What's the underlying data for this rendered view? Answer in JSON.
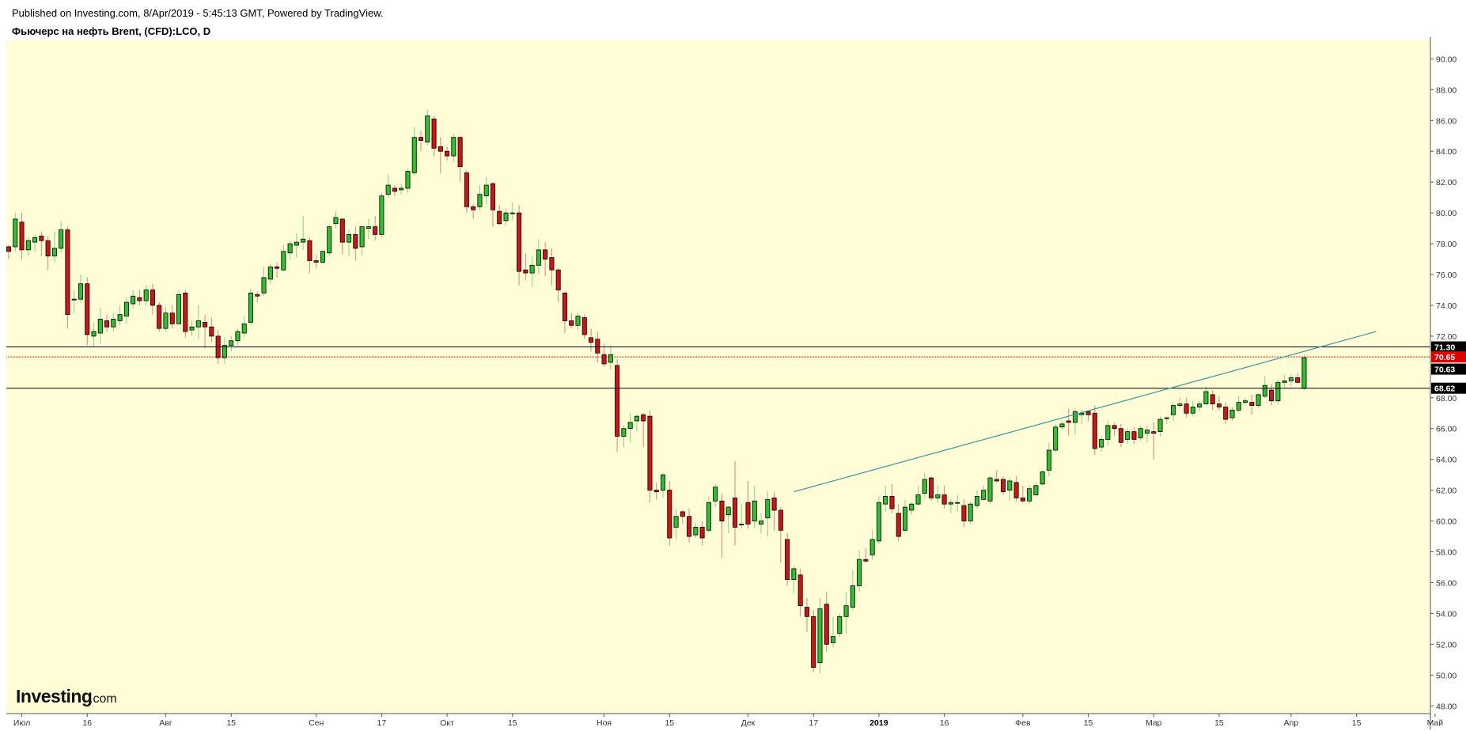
{
  "header": {
    "published": "Published on Investing.com, 8/Apr/2019 - 5:45:13 GMT, Powered by TradingView.",
    "title": "Фьючерс на нефть Brent, (CFD):LCO, D"
  },
  "logo": {
    "main": "Investing",
    "suffix": ".com"
  },
  "colors": {
    "background": "#fefdd5",
    "up": "#2ec02e",
    "down": "#d01414",
    "trendline": "#3a9a9a",
    "level_line": "#000000",
    "current_line": "#cc0000"
  },
  "chart_data": {
    "type": "candlestick",
    "symbol": "LCO",
    "interval": "D",
    "ylim": [
      47.5,
      91.2
    ],
    "y_ticks": [
      "48.00",
      "50.00",
      "52.00",
      "54.00",
      "56.00",
      "58.00",
      "60.00",
      "62.00",
      "64.00",
      "66.00",
      "68.00",
      "70.00",
      "72.00",
      "74.00",
      "76.00",
      "78.00",
      "80.00",
      "82.00",
      "84.00",
      "86.00",
      "88.00",
      "90.00"
    ],
    "x_ticks": [
      {
        "label": "Июл",
        "day": 2,
        "bold": false
      },
      {
        "label": "16",
        "day": 12,
        "bold": false
      },
      {
        "label": "Авг",
        "day": 24,
        "bold": false
      },
      {
        "label": "15",
        "day": 34,
        "bold": false
      },
      {
        "label": "Сен",
        "day": 47,
        "bold": false
      },
      {
        "label": "17",
        "day": 57,
        "bold": false
      },
      {
        "label": "Окт",
        "day": 67,
        "bold": false
      },
      {
        "label": "15",
        "day": 77,
        "bold": false
      },
      {
        "label": "Ноя",
        "day": 91,
        "bold": false
      },
      {
        "label": "15",
        "day": 101,
        "bold": false
      },
      {
        "label": "Дек",
        "day": 113,
        "bold": false
      },
      {
        "label": "17",
        "day": 123,
        "bold": false
      },
      {
        "label": "2019",
        "day": 133,
        "bold": true
      },
      {
        "label": "16",
        "day": 143,
        "bold": false
      },
      {
        "label": "Фев",
        "day": 155,
        "bold": false
      },
      {
        "label": "15",
        "day": 165,
        "bold": false
      },
      {
        "label": "Мар",
        "day": 175,
        "bold": false
      },
      {
        "label": "15",
        "day": 185,
        "bold": false
      },
      {
        "label": "Апр",
        "day": 196,
        "bold": false
      },
      {
        "label": "15",
        "day": 206,
        "bold": false
      },
      {
        "label": "Май",
        "day": 218,
        "bold": false
      }
    ],
    "price_levels": [
      {
        "value": 71.3,
        "label": "71.30",
        "style": "level"
      },
      {
        "value": 70.65,
        "label": "70.65",
        "style": "current"
      },
      {
        "value": 70.63,
        "label": "70.63",
        "style": "tag"
      },
      {
        "value": 68.62,
        "label": "68.62",
        "style": "level"
      }
    ],
    "trendline": {
      "x1": 120,
      "y1": 61.9,
      "x2": 209,
      "y2": 72.3
    },
    "candles": [
      [
        77.8,
        77.9,
        77.0,
        77.5
      ],
      [
        77.8,
        80.0,
        77.5,
        79.6
      ],
      [
        79.4,
        80.0,
        77.0,
        77.6
      ],
      [
        77.6,
        78.4,
        77.2,
        78.2
      ],
      [
        78.1,
        78.6,
        77.5,
        78.4
      ],
      [
        78.5,
        78.8,
        77.2,
        78.2
      ],
      [
        78.2,
        78.5,
        76.3,
        77.2
      ],
      [
        77.2,
        78.8,
        76.8,
        77.7
      ],
      [
        77.7,
        79.5,
        77.4,
        78.9
      ],
      [
        78.9,
        79.1,
        72.5,
        73.4
      ],
      [
        74.4,
        75.0,
        73.5,
        74.4
      ],
      [
        74.4,
        76.0,
        74.2,
        75.4
      ],
      [
        75.4,
        75.8,
        71.4,
        72.1
      ],
      [
        72.0,
        72.9,
        71.3,
        72.3
      ],
      [
        72.2,
        73.8,
        71.5,
        73.1
      ],
      [
        73.0,
        73.4,
        72.3,
        72.6
      ],
      [
        72.6,
        73.5,
        72.3,
        73.1
      ],
      [
        73.0,
        74.0,
        72.7,
        73.4
      ],
      [
        73.3,
        74.5,
        72.8,
        74.2
      ],
      [
        74.1,
        75.0,
        73.8,
        74.6
      ],
      [
        74.5,
        75.0,
        74.0,
        74.3
      ],
      [
        74.3,
        75.3,
        74.0,
        75.0
      ],
      [
        75.0,
        75.4,
        73.4,
        74.0
      ],
      [
        74.0,
        74.2,
        72.3,
        72.5
      ],
      [
        72.5,
        73.9,
        72.3,
        73.5
      ],
      [
        73.5,
        74.0,
        72.5,
        72.8
      ],
      [
        72.8,
        75.0,
        72.8,
        74.7
      ],
      [
        74.8,
        75.0,
        71.9,
        72.3
      ],
      [
        72.4,
        73.0,
        72.0,
        72.6
      ],
      [
        72.6,
        74.0,
        71.8,
        73.0
      ],
      [
        72.9,
        73.4,
        71.2,
        72.6
      ],
      [
        72.6,
        73.2,
        71.6,
        72.0
      ],
      [
        72.0,
        72.4,
        70.2,
        70.6
      ],
      [
        70.6,
        71.9,
        70.2,
        71.4
      ],
      [
        71.4,
        72.0,
        71.0,
        71.7
      ],
      [
        71.7,
        72.5,
        71.4,
        72.3
      ],
      [
        72.2,
        73.3,
        71.9,
        72.8
      ],
      [
        72.9,
        75.1,
        72.7,
        74.8
      ],
      [
        74.7,
        74.9,
        74.2,
        74.6
      ],
      [
        74.8,
        76.5,
        74.6,
        75.8
      ],
      [
        75.7,
        76.7,
        75.4,
        76.5
      ],
      [
        76.5,
        76.8,
        75.8,
        76.4
      ],
      [
        76.3,
        77.9,
        76.2,
        77.5
      ],
      [
        77.4,
        78.2,
        77.0,
        78.0
      ],
      [
        77.9,
        78.7,
        77.1,
        78.1
      ],
      [
        78.1,
        79.8,
        77.6,
        78.3
      ],
      [
        78.2,
        78.4,
        76.1,
        76.9
      ],
      [
        76.9,
        77.3,
        76.4,
        76.8
      ],
      [
        76.8,
        77.6,
        76.7,
        77.5
      ],
      [
        77.4,
        79.3,
        77.2,
        79.1
      ],
      [
        79.3,
        80.1,
        79.0,
        79.7
      ],
      [
        79.6,
        79.6,
        77.3,
        78.1
      ],
      [
        78.1,
        78.9,
        77.2,
        78.6
      ],
      [
        78.6,
        79.1,
        76.9,
        77.7
      ],
      [
        77.8,
        79.2,
        77.2,
        79.1
      ],
      [
        79.0,
        79.6,
        78.3,
        79.1
      ],
      [
        79.1,
        79.8,
        78.2,
        78.6
      ],
      [
        78.6,
        81.3,
        78.4,
        81.1
      ],
      [
        81.2,
        82.5,
        81.0,
        81.8
      ],
      [
        81.6,
        81.8,
        81.1,
        81.4
      ],
      [
        81.5,
        81.9,
        81.2,
        81.6
      ],
      [
        81.6,
        82.9,
        81.3,
        82.7
      ],
      [
        82.6,
        85.6,
        82.4,
        84.9
      ],
      [
        84.9,
        85.3,
        84.0,
        84.7
      ],
      [
        84.6,
        86.7,
        84.4,
        86.3
      ],
      [
        86.1,
        86.3,
        83.7,
        84.2
      ],
      [
        84.3,
        84.9,
        82.6,
        84.0
      ],
      [
        84.0,
        84.3,
        83.4,
        83.7
      ],
      [
        83.7,
        85.1,
        83.3,
        84.9
      ],
      [
        84.9,
        85.0,
        82.0,
        83.0
      ],
      [
        82.6,
        82.8,
        80.0,
        80.4
      ],
      [
        80.4,
        80.6,
        79.6,
        80.2
      ],
      [
        80.4,
        81.8,
        80.2,
        81.2
      ],
      [
        81.1,
        82.3,
        80.6,
        81.8
      ],
      [
        81.9,
        82.0,
        79.1,
        80.2
      ],
      [
        80.1,
        80.5,
        79.2,
        79.3
      ],
      [
        79.5,
        80.3,
        79.2,
        80.0
      ],
      [
        80.0,
        80.7,
        79.5,
        80.0
      ],
      [
        80.0,
        80.5,
        75.3,
        76.2
      ],
      [
        76.3,
        77.4,
        75.6,
        76.1
      ],
      [
        76.1,
        77.2,
        75.2,
        76.6
      ],
      [
        76.6,
        78.3,
        76.0,
        77.6
      ],
      [
        77.6,
        78.1,
        75.9,
        77.0
      ],
      [
        77.1,
        77.7,
        75.3,
        76.3
      ],
      [
        76.3,
        76.4,
        74.2,
        75.0
      ],
      [
        74.8,
        74.9,
        72.2,
        73.0
      ],
      [
        73.0,
        73.5,
        72.5,
        72.7
      ],
      [
        72.7,
        73.5,
        72.4,
        73.3
      ],
      [
        73.2,
        73.4,
        71.8,
        72.1
      ],
      [
        71.9,
        72.5,
        71.0,
        71.6
      ],
      [
        71.8,
        72.3,
        70.3,
        70.9
      ],
      [
        70.8,
        71.5,
        70.0,
        70.2
      ],
      [
        70.3,
        71.4,
        69.8,
        70.8
      ],
      [
        70.1,
        70.5,
        64.5,
        65.5
      ],
      [
        65.5,
        66.2,
        64.8,
        66.0
      ],
      [
        66.0,
        67.0,
        65.1,
        66.4
      ],
      [
        66.5,
        66.9,
        65.8,
        66.8
      ],
      [
        66.9,
        67.0,
        64.8,
        66.5
      ],
      [
        66.8,
        67.2,
        61.2,
        62.0
      ],
      [
        62.0,
        62.5,
        61.4,
        61.9
      ],
      [
        62.0,
        63.1,
        61.5,
        63.0
      ],
      [
        62.0,
        62.6,
        58.4,
        58.9
      ],
      [
        59.6,
        60.8,
        58.8,
        60.3
      ],
      [
        60.6,
        60.7,
        59.8,
        60.3
      ],
      [
        60.3,
        60.8,
        58.6,
        59.0
      ],
      [
        59.1,
        59.9,
        58.9,
        59.6
      ],
      [
        59.6,
        60.0,
        58.4,
        58.9
      ],
      [
        59.4,
        61.6,
        59.2,
        61.2
      ],
      [
        61.3,
        62.4,
        60.9,
        62.2
      ],
      [
        61.3,
        61.8,
        57.6,
        60.0
      ],
      [
        60.4,
        61.0,
        59.2,
        60.9
      ],
      [
        61.5,
        63.9,
        58.4,
        59.6
      ],
      [
        59.8,
        61.1,
        59.5,
        59.8
      ],
      [
        61.2,
        62.6,
        59.5,
        59.8
      ],
      [
        60.0,
        62.3,
        59.5,
        61.3
      ],
      [
        59.8,
        60.5,
        59.2,
        60.0
      ],
      [
        60.2,
        61.9,
        59.0,
        61.4
      ],
      [
        61.5,
        61.9,
        59.4,
        60.7
      ],
      [
        60.7,
        60.9,
        57.3,
        59.4
      ],
      [
        58.8,
        59.2,
        55.8,
        56.2
      ],
      [
        56.2,
        57.1,
        55.3,
        56.9
      ],
      [
        56.5,
        56.9,
        53.8,
        54.5
      ],
      [
        54.4,
        55.0,
        52.8,
        53.8
      ],
      [
        53.8,
        54.2,
        50.2,
        50.5
      ],
      [
        50.8,
        55.0,
        50.1,
        54.3
      ],
      [
        54.6,
        55.4,
        51.5,
        52.0
      ],
      [
        52.1,
        53.8,
        51.8,
        52.5
      ],
      [
        52.7,
        54.0,
        52.5,
        53.8
      ],
      [
        53.8,
        55.4,
        52.7,
        54.5
      ],
      [
        54.4,
        56.8,
        54.2,
        55.8
      ],
      [
        55.8,
        58.1,
        55.4,
        57.5
      ],
      [
        57.5,
        58.2,
        57.3,
        57.4
      ],
      [
        57.8,
        59.4,
        57.5,
        58.8
      ],
      [
        58.7,
        61.6,
        58.5,
        61.2
      ],
      [
        61.1,
        62.3,
        60.6,
        61.6
      ],
      [
        61.6,
        62.4,
        60.5,
        60.8
      ],
      [
        60.5,
        61.1,
        58.7,
        59.0
      ],
      [
        59.4,
        61.4,
        59.3,
        60.9
      ],
      [
        60.7,
        61.2,
        60.4,
        61.1
      ],
      [
        61.1,
        62.3,
        61.0,
        61.7
      ],
      [
        61.8,
        63.1,
        61.5,
        62.7
      ],
      [
        62.8,
        62.9,
        61.3,
        61.5
      ],
      [
        61.5,
        62.3,
        61.2,
        61.7
      ],
      [
        61.7,
        62.3,
        60.8,
        61.1
      ],
      [
        61.1,
        61.4,
        60.5,
        61.2
      ],
      [
        61.2,
        61.7,
        60.6,
        61.2
      ],
      [
        61.0,
        61.4,
        59.6,
        60.0
      ],
      [
        60.0,
        61.3,
        59.8,
        61.1
      ],
      [
        61.0,
        62.0,
        60.8,
        61.6
      ],
      [
        61.4,
        62.3,
        61.3,
        62.0
      ],
      [
        61.3,
        62.9,
        61.1,
        62.8
      ],
      [
        62.7,
        63.3,
        62.5,
        62.6
      ],
      [
        62.7,
        62.9,
        61.7,
        61.9
      ],
      [
        62.0,
        62.8,
        61.3,
        62.6
      ],
      [
        62.5,
        62.9,
        61.3,
        61.5
      ],
      [
        61.5,
        62.3,
        61.2,
        61.3
      ],
      [
        61.3,
        62.3,
        61.1,
        62.1
      ],
      [
        61.7,
        62.5,
        61.6,
        62.3
      ],
      [
        62.4,
        63.3,
        62.3,
        63.2
      ],
      [
        63.3,
        65.1,
        62.9,
        64.6
      ],
      [
        64.6,
        66.3,
        64.5,
        66.1
      ],
      [
        66.1,
        66.5,
        65.9,
        66.3
      ],
      [
        66.5,
        67.3,
        65.5,
        66.4
      ],
      [
        66.4,
        67.3,
        65.6,
        67.1
      ],
      [
        66.9,
        67.2,
        66.3,
        67.0
      ],
      [
        67.1,
        67.2,
        66.5,
        66.9
      ],
      [
        67.0,
        67.5,
        64.3,
        64.7
      ],
      [
        64.8,
        65.5,
        64.5,
        65.3
      ],
      [
        65.3,
        66.5,
        64.9,
        66.2
      ],
      [
        66.2,
        66.4,
        65.5,
        66.0
      ],
      [
        66.0,
        66.3,
        64.8,
        65.1
      ],
      [
        65.3,
        66.0,
        65.0,
        65.8
      ],
      [
        65.8,
        66.1,
        65.0,
        65.3
      ],
      [
        65.4,
        66.2,
        65.2,
        66.0
      ],
      [
        65.7,
        66.2,
        65.1,
        65.9
      ],
      [
        65.8,
        66.4,
        64.0,
        65.7
      ],
      [
        65.8,
        66.8,
        65.5,
        66.6
      ],
      [
        66.7,
        66.8,
        66.3,
        66.7
      ],
      [
        66.9,
        67.7,
        66.5,
        67.5
      ],
      [
        67.5,
        68.0,
        67.3,
        67.6
      ],
      [
        67.6,
        68.0,
        66.7,
        67.0
      ],
      [
        67.0,
        67.8,
        66.8,
        67.4
      ],
      [
        67.4,
        67.8,
        67.1,
        67.6
      ],
      [
        67.6,
        68.7,
        67.5,
        68.4
      ],
      [
        68.2,
        68.5,
        67.2,
        67.6
      ],
      [
        67.6,
        68.1,
        67.2,
        67.4
      ],
      [
        67.4,
        67.7,
        66.3,
        66.6
      ],
      [
        66.7,
        67.4,
        66.5,
        67.2
      ],
      [
        67.2,
        68.1,
        67.0,
        67.7
      ],
      [
        67.7,
        68.0,
        67.5,
        67.8
      ],
      [
        67.7,
        68.2,
        66.9,
        67.5
      ],
      [
        67.5,
        68.3,
        67.3,
        68.2
      ],
      [
        68.1,
        69.4,
        68.0,
        68.8
      ],
      [
        68.5,
        68.9,
        67.5,
        67.8
      ],
      [
        67.8,
        69.2,
        67.6,
        69.0
      ],
      [
        69.0,
        69.5,
        68.6,
        69.1
      ],
      [
        69.1,
        69.5,
        68.8,
        69.3
      ],
      [
        69.3,
        69.6,
        68.9,
        69.0
      ],
      [
        68.6,
        70.8,
        68.5,
        70.6
      ]
    ]
  }
}
